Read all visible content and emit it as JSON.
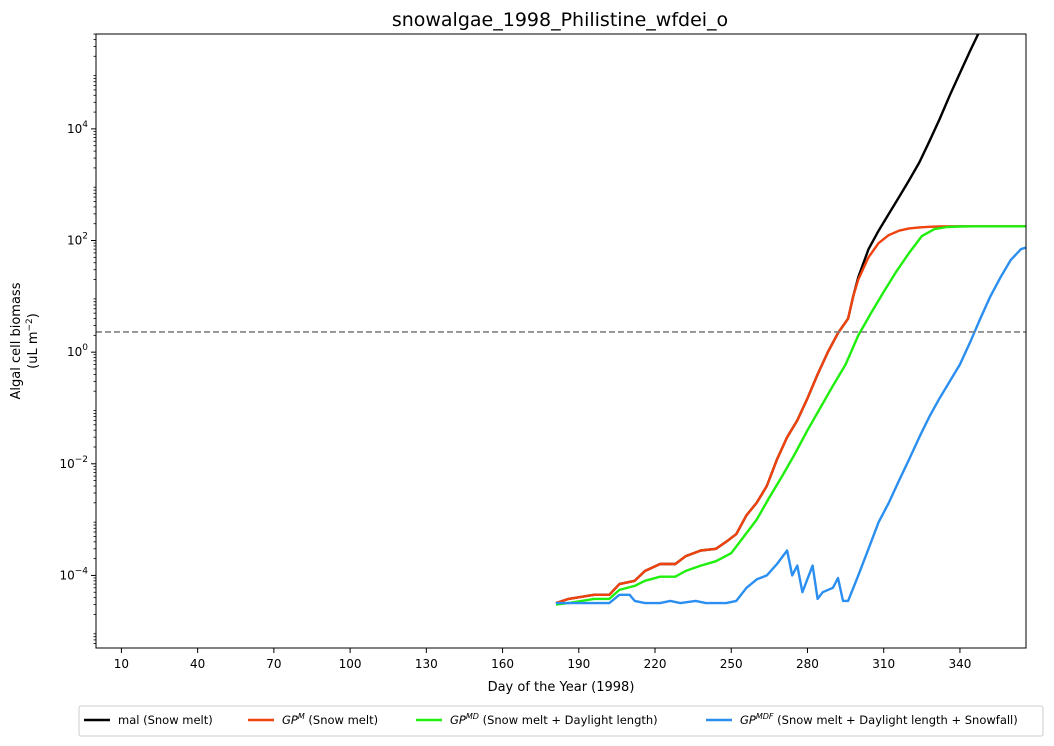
{
  "chart_data": {
    "type": "line",
    "title": "snowalgae_1998_Philistine_wfdei_o",
    "xlabel": "Day of the Year (1998)",
    "ylabel_line1": "Algal cell biomass",
    "ylabel_line2": "(uL m",
    "ylabel_sup": "−2",
    "ylabel_close": ")",
    "xlim": [
      0,
      366
    ],
    "ylim_log10": [
      -5.3,
      5.7
    ],
    "yscale": "log",
    "grid": false,
    "legend_placement": "bottom-center",
    "x_ticks": [
      {
        "value": 10,
        "label": "10"
      },
      {
        "value": 40,
        "label": "40"
      },
      {
        "value": 70,
        "label": "70"
      },
      {
        "value": 100,
        "label": "100"
      },
      {
        "value": 130,
        "label": "130"
      },
      {
        "value": 160,
        "label": "160"
      },
      {
        "value": 190,
        "label": "190"
      },
      {
        "value": 220,
        "label": "220"
      },
      {
        "value": 250,
        "label": "250"
      },
      {
        "value": 280,
        "label": "280"
      },
      {
        "value": 310,
        "label": "310"
      },
      {
        "value": 340,
        "label": "340"
      }
    ],
    "y_ticks": [
      {
        "exp": -4,
        "base": "10",
        "sup": "−4"
      },
      {
        "exp": -2,
        "base": "10",
        "sup": "−2"
      },
      {
        "exp": 0,
        "base": "10",
        "sup": "0"
      },
      {
        "exp": 2,
        "base": "10",
        "sup": "2"
      },
      {
        "exp": 4,
        "base": "10",
        "sup": "4"
      }
    ],
    "threshold": {
      "value": 2.3,
      "color": "#808080"
    },
    "series": [
      {
        "name": "mal (Snow melt)",
        "name_base": "",
        "name_sup": "",
        "name_rest": "mal (Snow melt)",
        "color": "#000000",
        "x": [
          181,
          186,
          196,
          202,
          206,
          212,
          216,
          222,
          228,
          232,
          238,
          244,
          248,
          252,
          256,
          260,
          264,
          268,
          272,
          276,
          280,
          284,
          288,
          292,
          296,
          298,
          300,
          304,
          308,
          312,
          316,
          320,
          324,
          328,
          332,
          336,
          340,
          344,
          348
        ],
        "y": [
          3.2e-05,
          3.8e-05,
          4.5e-05,
          4.5e-05,
          7e-05,
          8e-05,
          0.00012,
          0.00016,
          0.00016,
          0.00022,
          0.00028,
          0.0003,
          0.0004,
          0.00055,
          0.0012,
          0.002,
          0.004,
          0.012,
          0.03,
          0.06,
          0.15,
          0.4,
          1.0,
          2.2,
          4.0,
          10,
          22,
          70,
          150,
          300,
          600,
          1200,
          2500,
          6000,
          15000,
          40000,
          100000,
          250000,
          600000
        ]
      },
      {
        "name": "GP^M (Snow melt)",
        "name_base": "GP",
        "name_sup": "M",
        "name_rest": " (Snow melt)",
        "color": "#f0420d",
        "x": [
          181,
          186,
          196,
          202,
          206,
          212,
          216,
          222,
          228,
          232,
          238,
          244,
          248,
          252,
          256,
          260,
          264,
          268,
          272,
          276,
          280,
          284,
          288,
          292,
          296,
          298,
          300,
          304,
          308,
          312,
          316,
          320,
          324,
          328,
          332,
          336,
          340,
          344,
          350,
          356,
          366
        ],
        "y": [
          3.2e-05,
          3.8e-05,
          4.5e-05,
          4.5e-05,
          7e-05,
          8e-05,
          0.00012,
          0.00016,
          0.00016,
          0.00022,
          0.00028,
          0.0003,
          0.0004,
          0.00055,
          0.0012,
          0.002,
          0.004,
          0.012,
          0.03,
          0.06,
          0.15,
          0.4,
          1.0,
          2.2,
          4.0,
          10,
          20,
          50,
          90,
          125,
          150,
          165,
          172,
          176,
          178,
          180,
          180,
          180,
          180,
          180,
          180
        ]
      },
      {
        "name": "GP^MD (Snow melt + Daylight length)",
        "name_base": "GP",
        "name_sup": "MD",
        "name_rest": " (Snow melt + Daylight length)",
        "color": "#1fef0d",
        "x": [
          181,
          186,
          196,
          202,
          206,
          212,
          216,
          222,
          228,
          232,
          238,
          244,
          250,
          255,
          260,
          265,
          270,
          275,
          280,
          285,
          290,
          295,
          300,
          305,
          310,
          315,
          320,
          325,
          330,
          335,
          340,
          345,
          350,
          355,
          360,
          366
        ],
        "y": [
          3e-05,
          3.2e-05,
          3.8e-05,
          3.8e-05,
          5.5e-05,
          6.5e-05,
          8e-05,
          9.5e-05,
          9.5e-05,
          0.00012,
          0.00015,
          0.00018,
          0.00025,
          0.0005,
          0.001,
          0.0025,
          0.006,
          0.015,
          0.04,
          0.1,
          0.25,
          0.6,
          2.0,
          5.0,
          12,
          28,
          60,
          120,
          160,
          175,
          178,
          180,
          180,
          180,
          180,
          180
        ]
      },
      {
        "name": "GP^MDF (Snow melt + Daylight length + Snowfall)",
        "name_base": "GP",
        "name_sup": "MDF",
        "name_rest": " (Snow melt + Daylight length + Snowfall)",
        "color": "#2a8ff0",
        "x": [
          181,
          186,
          196,
          202,
          206,
          210,
          212,
          216,
          222,
          226,
          230,
          236,
          240,
          244,
          248,
          252,
          256,
          260,
          264,
          268,
          272,
          274,
          276,
          278,
          282,
          284,
          286,
          290,
          292,
          294,
          296,
          300,
          304,
          308,
          312,
          316,
          320,
          324,
          328,
          332,
          336,
          340,
          344,
          348,
          352,
          356,
          360,
          364,
          366
        ],
        "y": [
          3.2e-05,
          3.2e-05,
          3.2e-05,
          3.2e-05,
          4.5e-05,
          4.5e-05,
          3.5e-05,
          3.2e-05,
          3.2e-05,
          3.5e-05,
          3.2e-05,
          3.5e-05,
          3.2e-05,
          3.2e-05,
          3.2e-05,
          3.5e-05,
          6e-05,
          8.5e-05,
          0.0001,
          0.00016,
          0.00028,
          0.0001,
          0.00015,
          5e-05,
          0.00015,
          3.8e-05,
          5e-05,
          6e-05,
          9e-05,
          3.5e-05,
          3.5e-05,
          0.0001,
          0.0003,
          0.0009,
          0.002,
          0.005,
          0.012,
          0.03,
          0.07,
          0.15,
          0.3,
          0.6,
          1.5,
          4.0,
          10,
          22,
          45,
          70,
          75
        ]
      }
    ]
  }
}
